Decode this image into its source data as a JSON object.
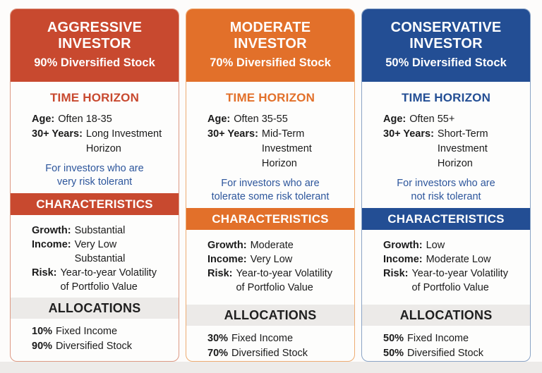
{
  "page": {
    "background": "#fdfcfb",
    "footer_strip_color": "#edebe9"
  },
  "cards": [
    {
      "name": "aggressive",
      "colors": {
        "accent": "#c8492f",
        "border": "#dd9a85"
      },
      "title": "AGGRESSIVE INVESTOR",
      "subtitle": "90% Diversified Stock",
      "time_horizon": {
        "heading": "TIME HORIZON",
        "rows": [
          {
            "label": "Age:",
            "text": "Often 18-35"
          },
          {
            "label": "30+ Years:",
            "text": "Long Investment\nHorizon"
          }
        ]
      },
      "note": "For investors who are\nvery risk tolerant",
      "characteristics": {
        "heading": "CHARACTERISTICS",
        "rows": [
          {
            "label": "Growth:",
            "text": "Substantial"
          },
          {
            "label": "Income:",
            "text": "Very Low\nSubstantial"
          },
          {
            "label": "Risk:",
            "text": "Year-to-year Volatility\nof Portfolio Value"
          }
        ]
      },
      "allocations": {
        "heading": "ALLOCATIONS",
        "rows": [
          {
            "label": "10%",
            "text": "Fixed Income"
          },
          {
            "label": "90%",
            "text": "Diversified Stock"
          }
        ]
      }
    },
    {
      "name": "moderate",
      "colors": {
        "accent": "#e2702a",
        "border": "#eeac72"
      },
      "title": "MODERATE INVESTOR",
      "subtitle": "70% Diversified Stock",
      "time_horizon": {
        "heading": "TIME HORIZON",
        "rows": [
          {
            "label": "Age:",
            "text": "Often 35-55"
          },
          {
            "label": "30+ Years:",
            "text": "Mid-Term Investment\nHorizon"
          }
        ]
      },
      "note": "For investors who are\ntolerate some risk tolerant",
      "characteristics": {
        "heading": "CHARACTERISTICS",
        "rows": [
          {
            "label": "Growth:",
            "text": "Moderate"
          },
          {
            "label": "Income:",
            "text": "Very Low"
          },
          {
            "label": "Risk:",
            "text": "Year-to-year Volatility\nof Portfolio Value"
          }
        ]
      },
      "allocations": {
        "heading": "ALLOCATIONS",
        "rows": [
          {
            "label": "30%",
            "text": "Fixed Income"
          },
          {
            "label": "70%",
            "text": "Diversified Stock"
          }
        ]
      }
    },
    {
      "name": "conservative",
      "colors": {
        "accent": "#234e94",
        "border": "#8ba4c6"
      },
      "title": "CONSERVATIVE INVESTOR",
      "subtitle": "50% Diversified Stock",
      "time_horizon": {
        "heading": "TIME HORIZON",
        "rows": [
          {
            "label": "Age:",
            "text": "Often 55+"
          },
          {
            "label": "30+ Years:",
            "text": "Short-Term Investment\nHorizon"
          }
        ]
      },
      "note": "For investors who are\nnot risk tolerant",
      "characteristics": {
        "heading": "CHARACTERISTICS",
        "rows": [
          {
            "label": "Growth:",
            "text": "Low"
          },
          {
            "label": "Income:",
            "text": "Moderate Low"
          },
          {
            "label": "Risk:",
            "text": "Year-to-year Volatility\nof Portfolio Value"
          }
        ]
      },
      "allocations": {
        "heading": "ALLOCATIONS",
        "rows": [
          {
            "label": "50%",
            "text": "Fixed Income"
          },
          {
            "label": "50%",
            "text": "Diversified Stock"
          }
        ]
      }
    }
  ]
}
